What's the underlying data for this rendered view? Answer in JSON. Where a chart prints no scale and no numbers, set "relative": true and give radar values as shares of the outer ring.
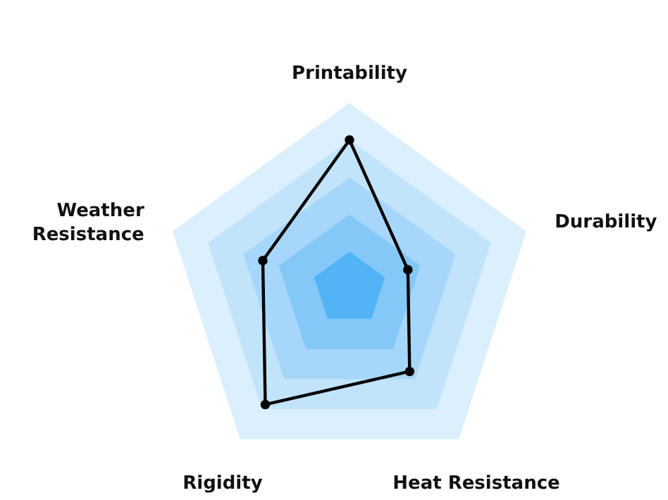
{
  "chart_data": {
    "type": "radar",
    "relative": true,
    "categories": [
      "Printability",
      "Durability",
      "Heat Resistance",
      "Rigidity",
      "Weather Resistance"
    ],
    "series": [
      {
        "color": "#000000",
        "values": [
          0.8,
          0.33,
          0.55,
          0.77,
          0.49
        ]
      }
    ],
    "grid": true,
    "marker": "circle"
  }
}
